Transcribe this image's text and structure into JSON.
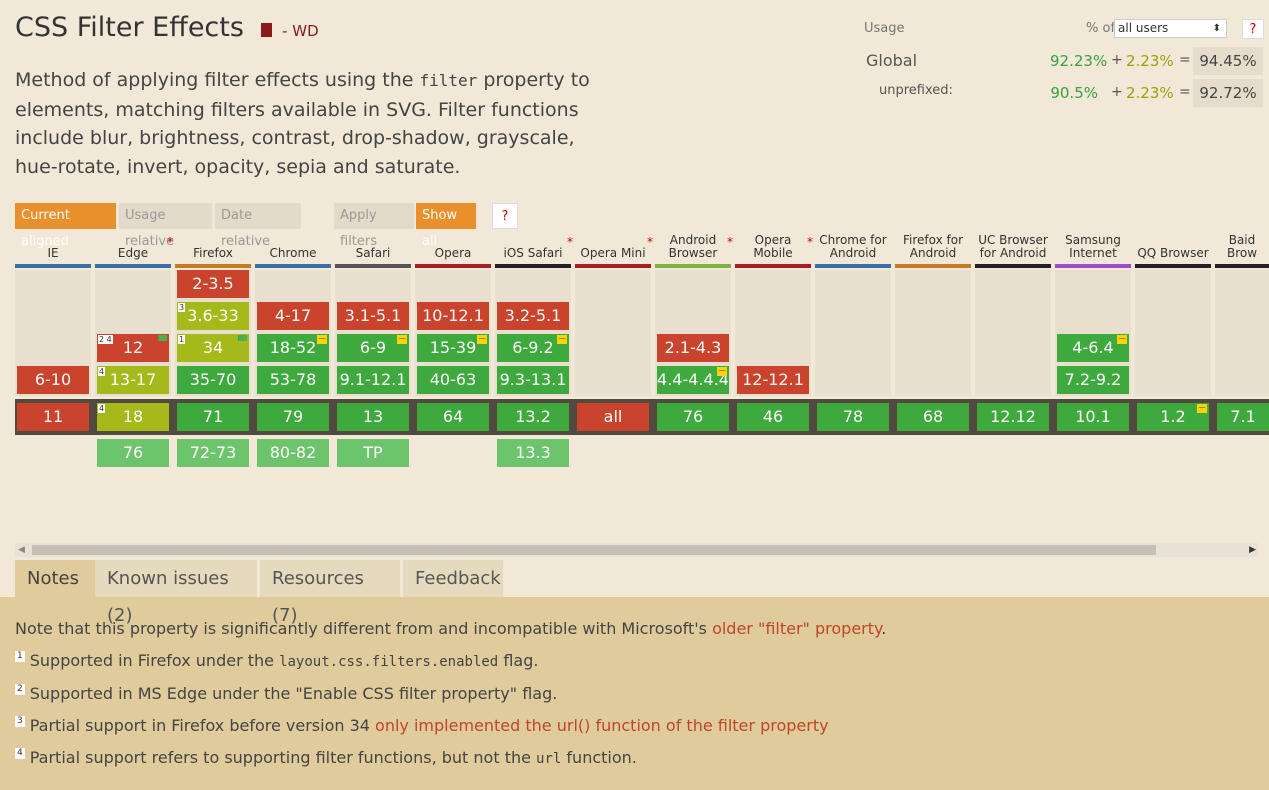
{
  "feature": {
    "title": "CSS Filter Effects",
    "status": "- WD",
    "desc_pre": "Method of applying filter effects using the ",
    "desc_code": "filter",
    "desc_post": " property to elements, matching filters available in SVG. Filter functions include blur, brightness, contrast, drop-shadow, grayscale, hue-rotate, invert, opacity, sepia and saturate."
  },
  "usage": {
    "label": "Usage",
    "pct_of": "% of",
    "selected": "all users",
    "help": "?",
    "global": {
      "name": "Global",
      "supported": "92.23%",
      "plus": "+",
      "partial": "2.23%",
      "eq": "=",
      "total": "94.45%"
    },
    "unprefixed": {
      "name": "unprefixed:",
      "supported": "90.5%",
      "plus": "+",
      "partial": "2.23%",
      "eq": "=",
      "total": "92.72%"
    }
  },
  "filters": {
    "current_aligned": "Current aligned",
    "usage_relative": "Usage relative",
    "date_relative": "Date relative",
    "apply_filters": "Apply filters",
    "show_all": "Show all",
    "help": "?"
  },
  "colors": {
    "no": "#c9432d",
    "yes": "#3eaa3e",
    "partial": "#a5ba1a",
    "future": "#6cc56c",
    "accent": "#e98f2c"
  },
  "browsers": [
    {
      "id": "ie",
      "line1": "IE",
      "line2": "",
      "ast": "",
      "bar": "#3b6ea5"
    },
    {
      "id": "edge",
      "line1": "Edge",
      "line2": "",
      "ast": "*",
      "bar": "#3b6ea5"
    },
    {
      "id": "firefox",
      "line1": "Firefox",
      "line2": "",
      "ast": "",
      "bar": "#c47a26"
    },
    {
      "id": "chrome",
      "line1": "Chrome",
      "line2": "",
      "ast": "",
      "bar": "#3b6ea5"
    },
    {
      "id": "safari",
      "line1": "Safari",
      "line2": "",
      "ast": "",
      "bar": "#555555"
    },
    {
      "id": "opera",
      "line1": "Opera",
      "line2": "",
      "ast": "",
      "bar": "#a32020"
    },
    {
      "id": "ios-safari",
      "line1": "iOS Safari",
      "line2": "",
      "ast": "*",
      "bar": "#222222"
    },
    {
      "id": "opera-mini",
      "line1": "Opera Mini",
      "line2": "",
      "ast": "*",
      "bar": "#a32020"
    },
    {
      "id": "android-browser",
      "line1": "Android",
      "line2": "Browser",
      "ast": "*",
      "bar": "#7cb342"
    },
    {
      "id": "opera-mobile",
      "line1": "Opera Mobile",
      "line2": "",
      "ast": "*",
      "bar": "#a32020"
    },
    {
      "id": "chrome-android",
      "line1": "Chrome for",
      "line2": "Android",
      "ast": "",
      "bar": "#3b6ea5"
    },
    {
      "id": "firefox-android",
      "line1": "Firefox for",
      "line2": "Android",
      "ast": "",
      "bar": "#c47a26"
    },
    {
      "id": "uc-browser",
      "line1": "UC Browser",
      "line2": "for Android",
      "ast": "",
      "bar": "#222222"
    },
    {
      "id": "samsung",
      "line1": "Samsung",
      "line2": "Internet",
      "ast": "",
      "bar": "#9b4dca"
    },
    {
      "id": "qq",
      "line1": "QQ Browser",
      "line2": "",
      "ast": "",
      "bar": "#222222"
    },
    {
      "id": "baidu",
      "line1": "Baid",
      "line2": "Brow",
      "ast": "",
      "bar": "#222222"
    }
  ],
  "cells": [
    {
      "col": 2,
      "row": 0,
      "text": "2-3.5",
      "s": "n"
    },
    {
      "col": 2,
      "row": 1,
      "text": "3.6-33",
      "s": "a",
      "note": "3"
    },
    {
      "col": 3,
      "row": 1,
      "text": "4-17",
      "s": "n"
    },
    {
      "col": 4,
      "row": 1,
      "text": "3.1-5.1",
      "s": "n"
    },
    {
      "col": 5,
      "row": 1,
      "text": "10-12.1",
      "s": "n"
    },
    {
      "col": 6,
      "row": 1,
      "text": "3.2-5.1",
      "s": "n"
    },
    {
      "col": 1,
      "row": 2,
      "text": "12",
      "s": "n",
      "note": "2 4",
      "flag": true
    },
    {
      "col": 2,
      "row": 2,
      "text": "34",
      "s": "a",
      "note": "1",
      "flag": true
    },
    {
      "col": 3,
      "row": 2,
      "text": "18-52",
      "s": "y",
      "pref": true
    },
    {
      "col": 4,
      "row": 2,
      "text": "6-9",
      "s": "y",
      "pref": true
    },
    {
      "col": 5,
      "row": 2,
      "text": "15-39",
      "s": "y",
      "pref": true
    },
    {
      "col": 6,
      "row": 2,
      "text": "6-9.2",
      "s": "y",
      "pref": true
    },
    {
      "col": 8,
      "row": 2,
      "text": "2.1-4.3",
      "s": "n"
    },
    {
      "col": 13,
      "row": 2,
      "text": "4-6.4",
      "s": "y",
      "pref": true
    },
    {
      "col": 0,
      "row": 3,
      "text": "6-10",
      "s": "n"
    },
    {
      "col": 1,
      "row": 3,
      "text": "13-17",
      "s": "a",
      "note": "4"
    },
    {
      "col": 2,
      "row": 3,
      "text": "35-70",
      "s": "y"
    },
    {
      "col": 3,
      "row": 3,
      "text": "53-78",
      "s": "y"
    },
    {
      "col": 4,
      "row": 3,
      "text": "9.1-12.1",
      "s": "y"
    },
    {
      "col": 5,
      "row": 3,
      "text": "40-63",
      "s": "y"
    },
    {
      "col": 6,
      "row": 3,
      "text": "9.3-13.1",
      "s": "y"
    },
    {
      "col": 8,
      "row": 3,
      "text": "4.4-4.4.4",
      "s": "y",
      "pref": true
    },
    {
      "col": 9,
      "row": 3,
      "text": "12-12.1",
      "s": "n"
    },
    {
      "col": 13,
      "row": 3,
      "text": "7.2-9.2",
      "s": "y"
    },
    {
      "col": 0,
      "row": 4,
      "text": "11",
      "s": "n"
    },
    {
      "col": 1,
      "row": 4,
      "text": "18",
      "s": "a",
      "note": "4"
    },
    {
      "col": 2,
      "row": 4,
      "text": "71",
      "s": "y"
    },
    {
      "col": 3,
      "row": 4,
      "text": "79",
      "s": "y"
    },
    {
      "col": 4,
      "row": 4,
      "text": "13",
      "s": "y"
    },
    {
      "col": 5,
      "row": 4,
      "text": "64",
      "s": "y"
    },
    {
      "col": 6,
      "row": 4,
      "text": "13.2",
      "s": "y"
    },
    {
      "col": 7,
      "row": 4,
      "text": "all",
      "s": "n"
    },
    {
      "col": 8,
      "row": 4,
      "text": "76",
      "s": "y"
    },
    {
      "col": 9,
      "row": 4,
      "text": "46",
      "s": "y"
    },
    {
      "col": 10,
      "row": 4,
      "text": "78",
      "s": "y"
    },
    {
      "col": 11,
      "row": 4,
      "text": "68",
      "s": "y"
    },
    {
      "col": 12,
      "row": 4,
      "text": "12.12",
      "s": "y"
    },
    {
      "col": 13,
      "row": 4,
      "text": "10.1",
      "s": "y"
    },
    {
      "col": 14,
      "row": 4,
      "text": "1.2",
      "s": "y",
      "pref": true
    },
    {
      "col": 15,
      "row": 4,
      "text": "7.1",
      "s": "y"
    },
    {
      "col": 1,
      "row": 5,
      "text": "76",
      "s": "f"
    },
    {
      "col": 2,
      "row": 5,
      "text": "72-73",
      "s": "f"
    },
    {
      "col": 3,
      "row": 5,
      "text": "80-82",
      "s": "f"
    },
    {
      "col": 4,
      "row": 5,
      "text": "TP",
      "s": "f"
    },
    {
      "col": 6,
      "row": 5,
      "text": "13.3",
      "s": "f"
    }
  ],
  "tabs": [
    "Notes",
    "Known issues (2)",
    "Resources (7)",
    "Feedback"
  ],
  "notes": {
    "main_pre": "Note that this property is significantly different from and incompatible with Microsoft's ",
    "main_link": "older \"filter\" property",
    "main_post": ".",
    "n1_num": "1",
    "n1_pre": "Supported in Firefox under the ",
    "n1_code": "layout.css.filters.enabled",
    "n1_post": " flag.",
    "n2_num": "2",
    "n2_text": "Supported in MS Edge under the \"Enable CSS filter property\" flag.",
    "n3_num": "3",
    "n3_pre": "Partial support in Firefox before version 34 ",
    "n3_link": "only implemented the url() function of the filter property",
    "n4_num": "4",
    "n4_pre": "Partial support refers to supporting filter functions, but not the ",
    "n4_code": "url",
    "n4_post": " function."
  }
}
